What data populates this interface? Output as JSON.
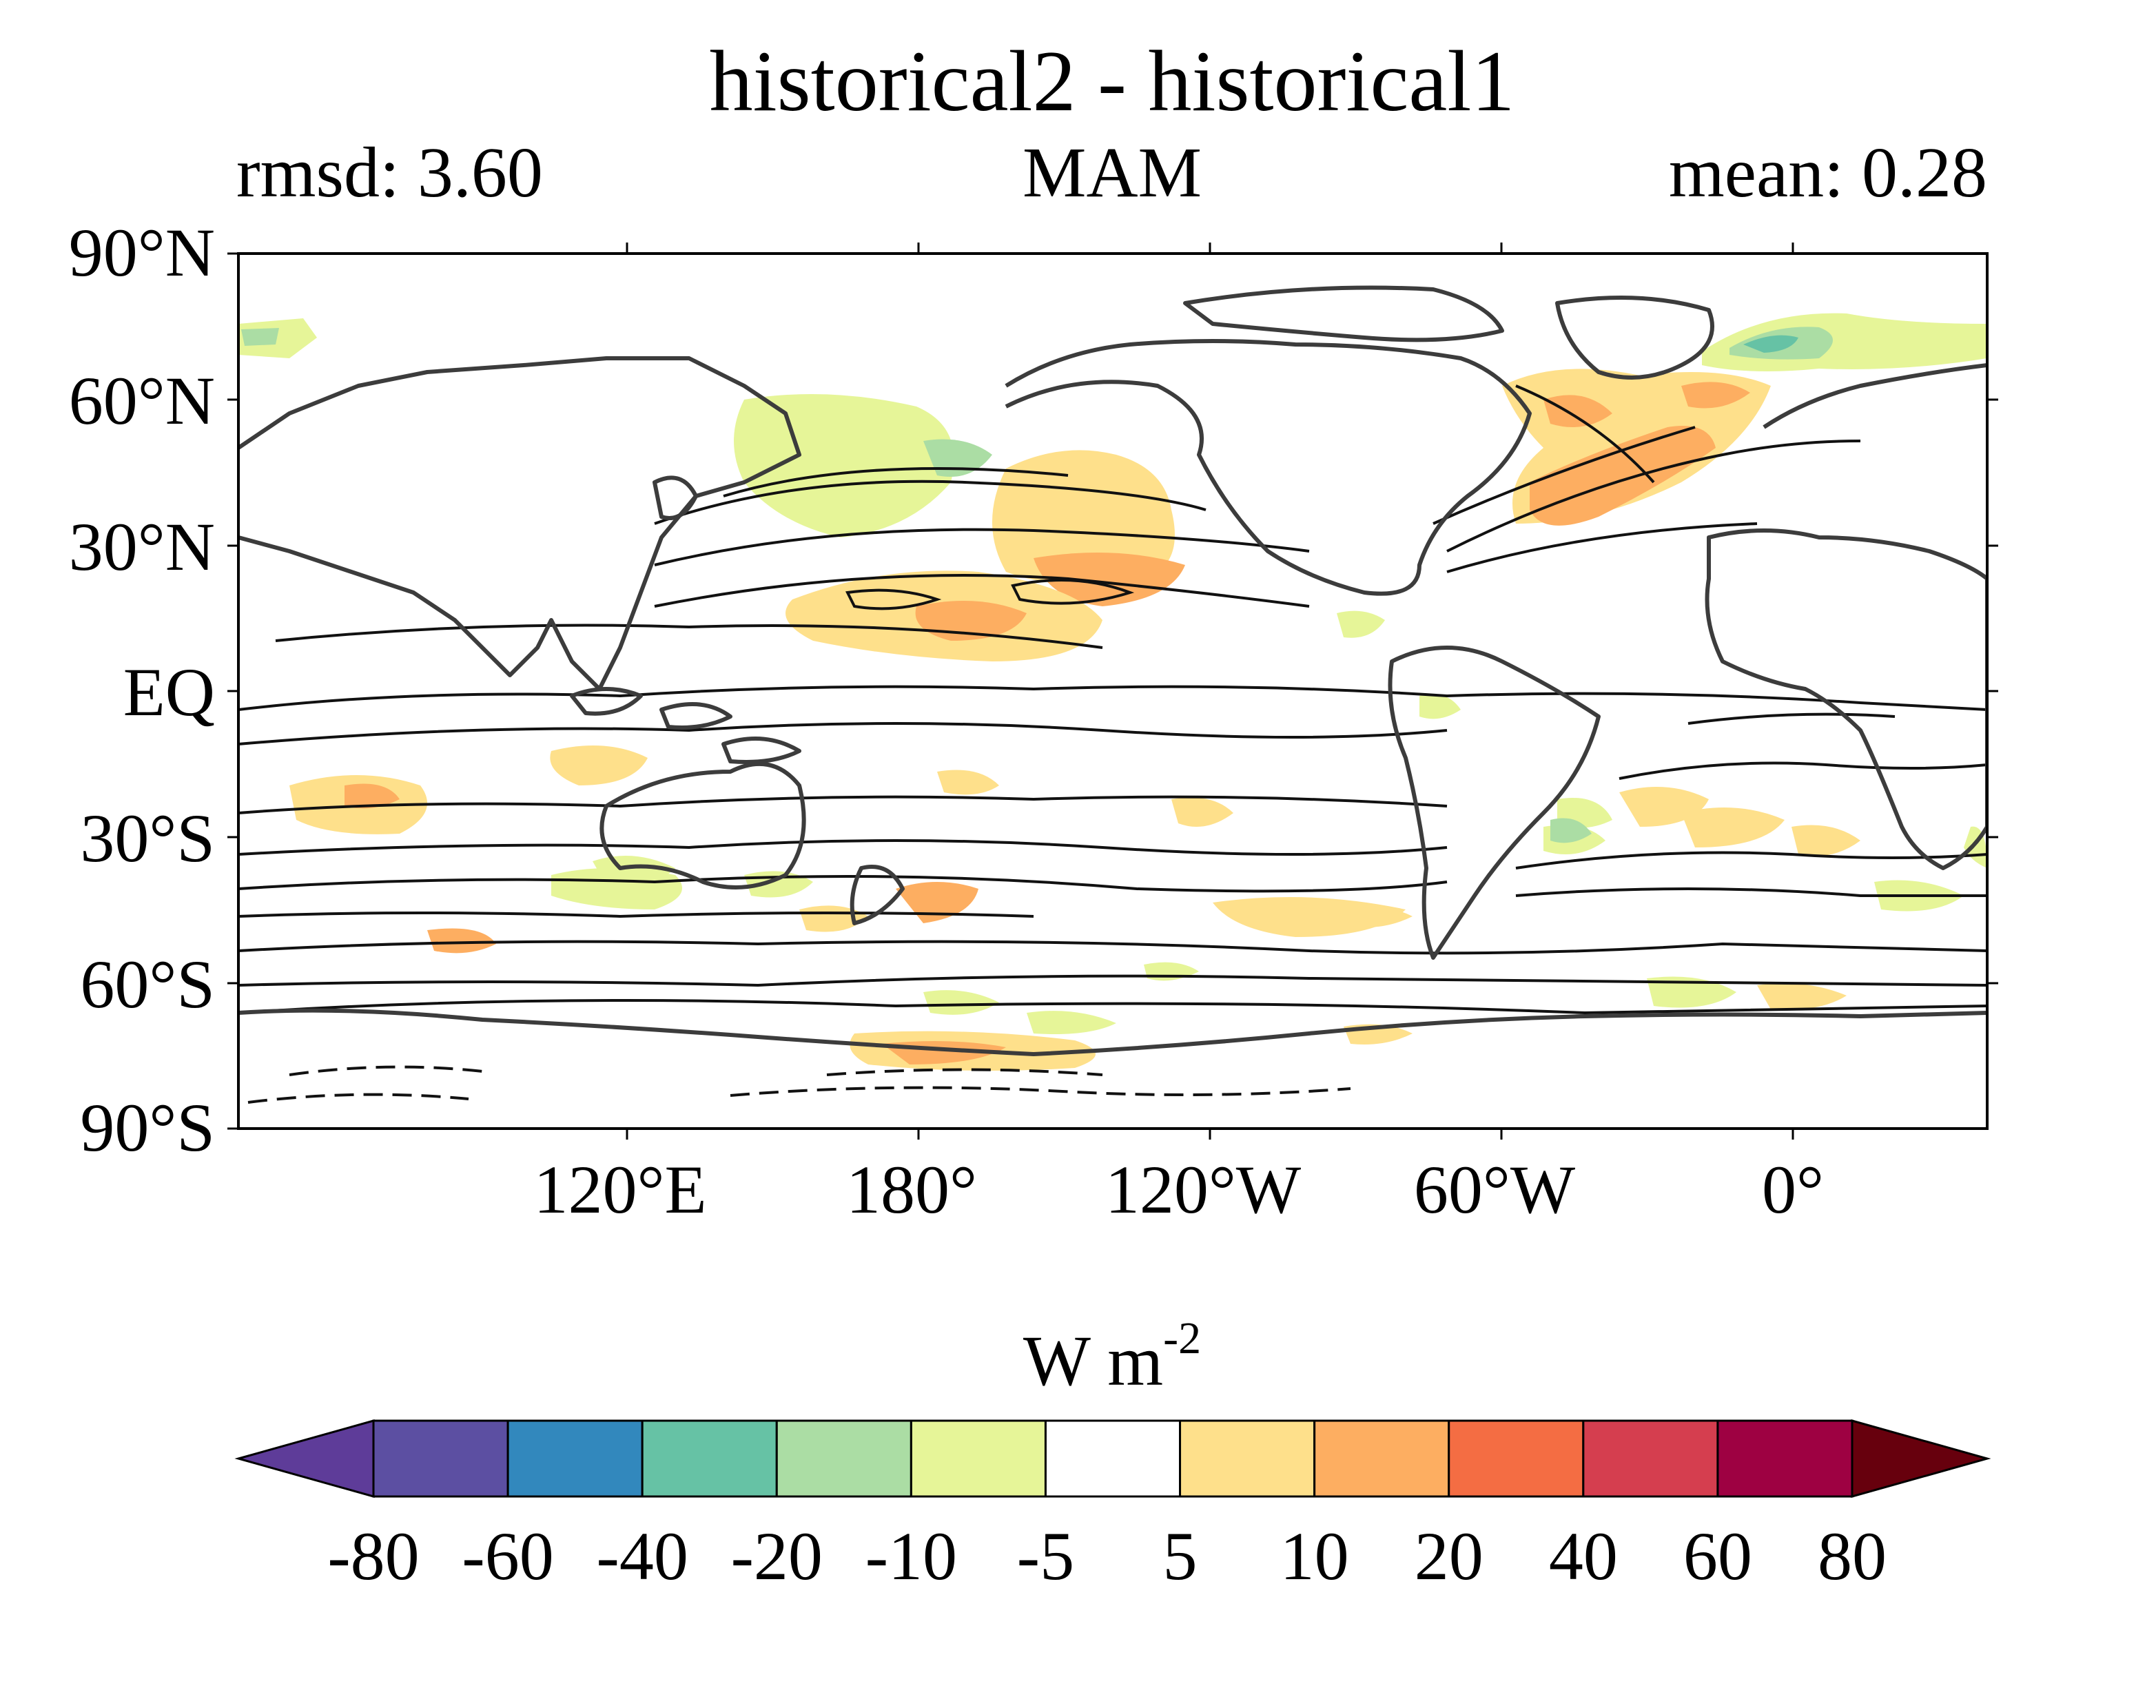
{
  "header": {
    "title": "historical2 - historical1",
    "left_label": "rmsd: 3.60",
    "center_label": "MAM",
    "right_label": "mean: 0.28"
  },
  "map": {
    "projection": "cylindrical equidistant",
    "lon_range": [
      60,
      420
    ],
    "lat_range": [
      -90,
      90
    ],
    "lat_ticks": [
      {
        "value": 90,
        "label": "90°N"
      },
      {
        "value": 60,
        "label": "60°N"
      },
      {
        "value": 30,
        "label": "30°N"
      },
      {
        "value": 0,
        "label": "EQ"
      },
      {
        "value": -30,
        "label": "30°S"
      },
      {
        "value": -60,
        "label": "60°S"
      },
      {
        "value": -90,
        "label": "90°S"
      }
    ],
    "lon_ticks": [
      {
        "value": 120,
        "label": "120°E"
      },
      {
        "value": 180,
        "label": "180°"
      },
      {
        "value": 240,
        "label": "120°W"
      },
      {
        "value": 300,
        "label": "60°W"
      },
      {
        "value": 360,
        "label": "0°"
      }
    ],
    "coastline_color": "#3c3c3c",
    "contour_color": "#111111"
  },
  "colorbar": {
    "unit_base": "W m",
    "unit_exp": "-2",
    "levels": [
      "-80",
      "-60",
      "-40",
      "-20",
      "-10",
      "-5",
      "5",
      "10",
      "20",
      "40",
      "60",
      "80"
    ],
    "colors": [
      "#5e3c99",
      "#5c4fa2",
      "#3288bd",
      "#66c2a5",
      "#abdda4",
      "#e6f598",
      "#ffffff",
      "#fee08b",
      "#fdae61",
      "#f46d43",
      "#d53e4f",
      "#9e0142",
      "#67000d"
    ]
  }
}
